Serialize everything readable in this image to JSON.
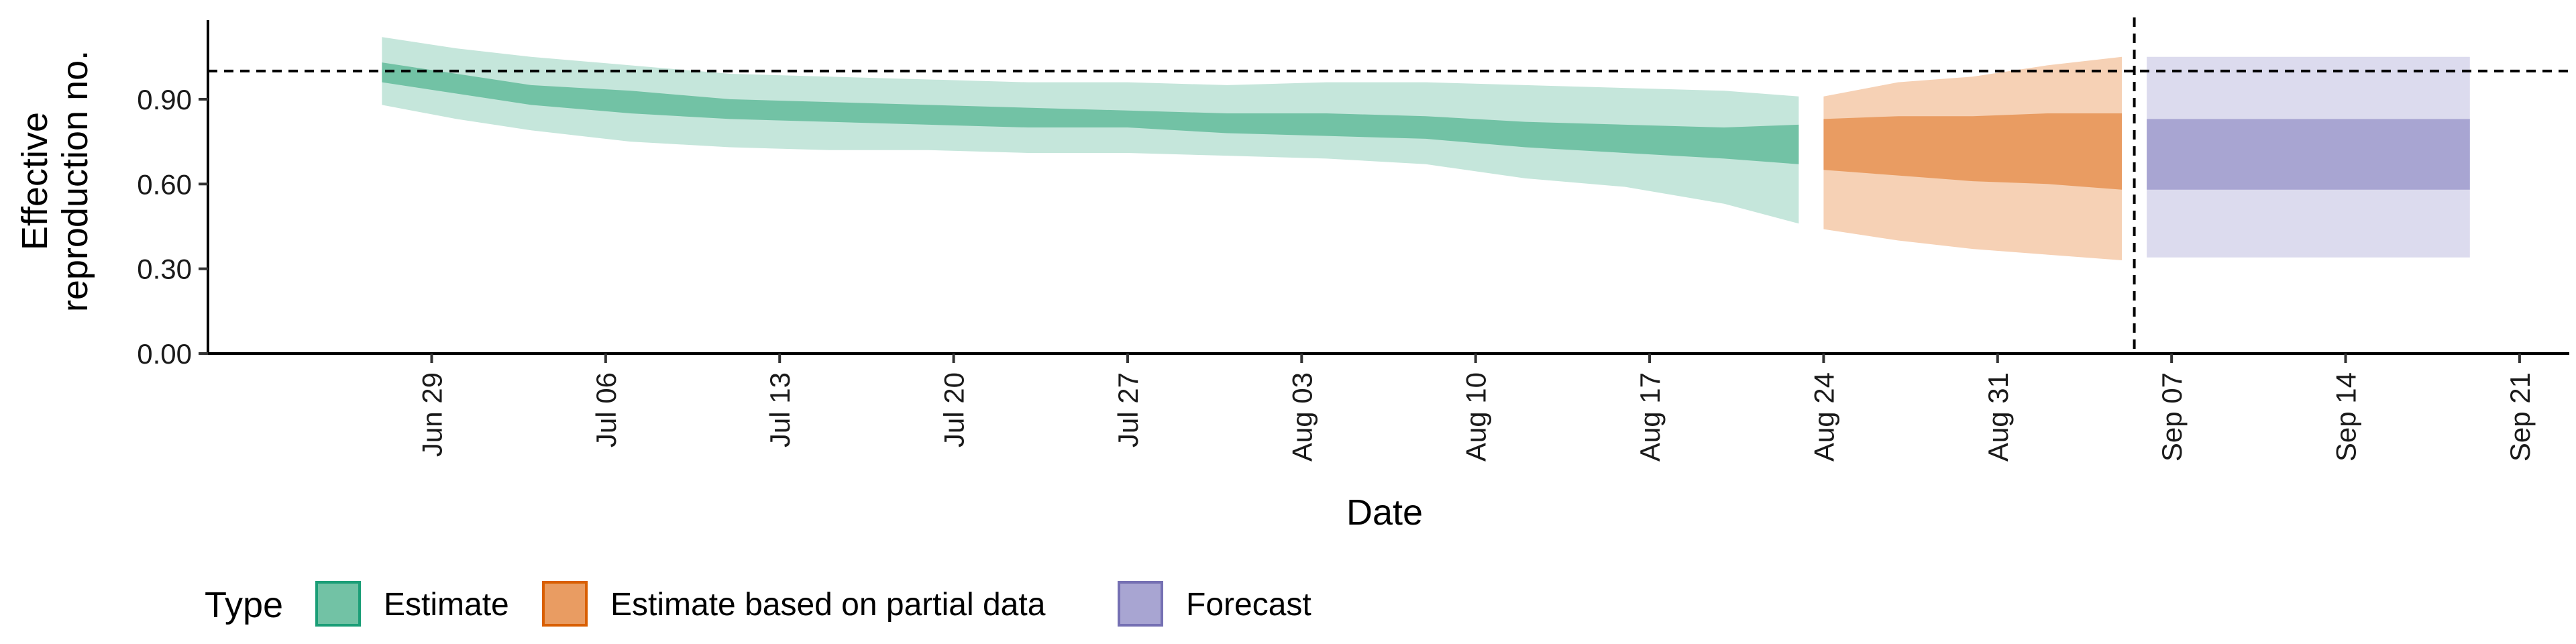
{
  "chart_data": {
    "type": "area",
    "xlabel": "Date",
    "ylabel_lines": [
      "Effective",
      "reproduction no."
    ],
    "ylim": [
      0.0,
      1.18
    ],
    "yticks": [
      0.0,
      0.3,
      0.6,
      0.9
    ],
    "ytick_labels": [
      "0.00",
      "0.30",
      "0.60",
      "0.90"
    ],
    "xlim": [
      "2020-06-20",
      "2020-09-23"
    ],
    "xticks": [
      "2020-06-29",
      "2020-07-06",
      "2020-07-13",
      "2020-07-20",
      "2020-07-27",
      "2020-08-03",
      "2020-08-10",
      "2020-08-17",
      "2020-08-24",
      "2020-08-31",
      "2020-09-07",
      "2020-09-14",
      "2020-09-21"
    ],
    "xtick_labels": [
      "Jun 29",
      "Jul 06",
      "Jul 13",
      "Jul 20",
      "Jul 27",
      "Aug 03",
      "Aug 10",
      "Aug 17",
      "Aug 24",
      "Aug 31",
      "Sep 07",
      "Sep 14",
      "Sep 21"
    ],
    "reference_line_y": 1.0,
    "forecast_date": "2020-09-05",
    "legend": {
      "title": "Type",
      "placement": "bottom-left",
      "items": [
        {
          "label": "Estimate",
          "fill": "#72c2a5",
          "border": "#1b9e77"
        },
        {
          "label": "Estimate based on partial data",
          "fill": "#e99c62",
          "border": "#d95f02"
        },
        {
          "label": "Forecast",
          "fill": "#a8a5d2",
          "border": "#7570b3"
        }
      ]
    },
    "series": [
      {
        "name": "Estimate",
        "color": "#1b9e77",
        "inner_color": "#72c2a5",
        "outer_color": "#c5e6db",
        "points": [
          {
            "x": "2020-06-27",
            "outer_lo": 0.88,
            "inner_lo": 0.96,
            "inner_hi": 1.03,
            "outer_hi": 1.12
          },
          {
            "x": "2020-06-30",
            "outer_lo": 0.83,
            "inner_lo": 0.92,
            "inner_hi": 0.99,
            "outer_hi": 1.08
          },
          {
            "x": "2020-07-03",
            "outer_lo": 0.79,
            "inner_lo": 0.88,
            "inner_hi": 0.95,
            "outer_hi": 1.05
          },
          {
            "x": "2020-07-07",
            "outer_lo": 0.75,
            "inner_lo": 0.85,
            "inner_hi": 0.93,
            "outer_hi": 1.02
          },
          {
            "x": "2020-07-11",
            "outer_lo": 0.73,
            "inner_lo": 0.83,
            "inner_hi": 0.9,
            "outer_hi": 0.99
          },
          {
            "x": "2020-07-15",
            "outer_lo": 0.72,
            "inner_lo": 0.82,
            "inner_hi": 0.89,
            "outer_hi": 0.98
          },
          {
            "x": "2020-07-19",
            "outer_lo": 0.72,
            "inner_lo": 0.81,
            "inner_hi": 0.88,
            "outer_hi": 0.97
          },
          {
            "x": "2020-07-23",
            "outer_lo": 0.71,
            "inner_lo": 0.8,
            "inner_hi": 0.87,
            "outer_hi": 0.96
          },
          {
            "x": "2020-07-27",
            "outer_lo": 0.71,
            "inner_lo": 0.8,
            "inner_hi": 0.86,
            "outer_hi": 0.96
          },
          {
            "x": "2020-07-31",
            "outer_lo": 0.7,
            "inner_lo": 0.78,
            "inner_hi": 0.85,
            "outer_hi": 0.95
          },
          {
            "x": "2020-08-04",
            "outer_lo": 0.69,
            "inner_lo": 0.77,
            "inner_hi": 0.85,
            "outer_hi": 0.96
          },
          {
            "x": "2020-08-08",
            "outer_lo": 0.67,
            "inner_lo": 0.76,
            "inner_hi": 0.84,
            "outer_hi": 0.96
          },
          {
            "x": "2020-08-12",
            "outer_lo": 0.62,
            "inner_lo": 0.73,
            "inner_hi": 0.82,
            "outer_hi": 0.95
          },
          {
            "x": "2020-08-16",
            "outer_lo": 0.59,
            "inner_lo": 0.71,
            "inner_hi": 0.81,
            "outer_hi": 0.94
          },
          {
            "x": "2020-08-20",
            "outer_lo": 0.53,
            "inner_lo": 0.69,
            "inner_hi": 0.8,
            "outer_hi": 0.93
          },
          {
            "x": "2020-08-23",
            "outer_lo": 0.46,
            "inner_lo": 0.67,
            "inner_hi": 0.81,
            "outer_hi": 0.91
          }
        ]
      },
      {
        "name": "Estimate based on partial data",
        "color": "#d95f02",
        "inner_color": "#e99c62",
        "outer_color": "#f6d1b5",
        "points": [
          {
            "x": "2020-08-24",
            "outer_lo": 0.44,
            "inner_lo": 0.65,
            "inner_hi": 0.83,
            "outer_hi": 0.91
          },
          {
            "x": "2020-08-27",
            "outer_lo": 0.4,
            "inner_lo": 0.63,
            "inner_hi": 0.84,
            "outer_hi": 0.96
          },
          {
            "x": "2020-08-30",
            "outer_lo": 0.37,
            "inner_lo": 0.61,
            "inner_hi": 0.84,
            "outer_hi": 0.98
          },
          {
            "x": "2020-09-02",
            "outer_lo": 0.35,
            "inner_lo": 0.6,
            "inner_hi": 0.85,
            "outer_hi": 1.02
          },
          {
            "x": "2020-09-05",
            "outer_lo": 0.33,
            "inner_lo": 0.58,
            "inner_hi": 0.85,
            "outer_hi": 1.05
          }
        ]
      },
      {
        "name": "Forecast",
        "color": "#7570b3",
        "inner_color": "#a8a5d2",
        "outer_color": "#dcdbee",
        "points": [
          {
            "x": "2020-09-06",
            "outer_lo": 0.34,
            "inner_lo": 0.58,
            "inner_hi": 0.83,
            "outer_hi": 1.05
          },
          {
            "x": "2020-09-19",
            "outer_lo": 0.34,
            "inner_lo": 0.58,
            "inner_hi": 0.83,
            "outer_hi": 1.05
          }
        ]
      }
    ]
  }
}
